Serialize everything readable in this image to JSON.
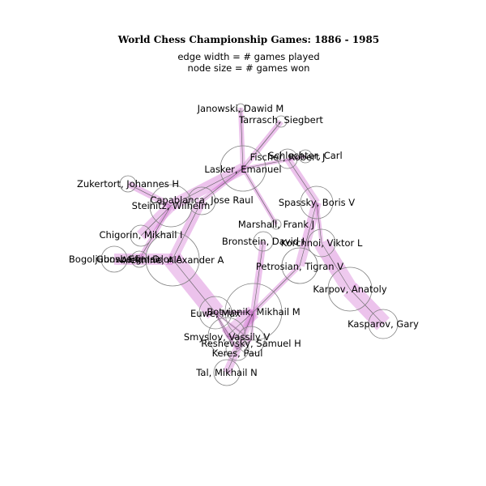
{
  "chart_data": {
    "type": "network",
    "title": "World Chess Championship Games: 1886 - 1985",
    "subtitle_line1": "edge width = # games played",
    "subtitle_line2": "node size = # games won",
    "edge_color": "#c850c8",
    "node_stroke_color": "#808080",
    "nodes": [
      {
        "id": "janowski",
        "label": "Janowski, Dawid M"
      },
      {
        "id": "tarrasch",
        "label": "Tarrasch, Siegbert"
      },
      {
        "id": "fischer",
        "label": "Fischer, Robert J"
      },
      {
        "id": "schlechter",
        "label": "Schlechter, Carl"
      },
      {
        "id": "lasker",
        "label": "Lasker, Emanuel"
      },
      {
        "id": "zukertort",
        "label": "Zukertort, Johannes H"
      },
      {
        "id": "capablanca",
        "label": "Capablanca, Jose Raul"
      },
      {
        "id": "steinitz",
        "label": "Steinitz, Wilhelm"
      },
      {
        "id": "spassky",
        "label": "Spassky, Boris V"
      },
      {
        "id": "marshall",
        "label": "Marshall, Frank J"
      },
      {
        "id": "chigorin",
        "label": "Chigorin, Mikhail I"
      },
      {
        "id": "bronstein",
        "label": "Bronstein, David I"
      },
      {
        "id": "korchnoi",
        "label": "Korchnoi, Viktor L"
      },
      {
        "id": "bogoljubow",
        "label": "Bogoljubow, Efim D"
      },
      {
        "id": "gunsberg",
        "label": "Gunsberg, Isidor A"
      },
      {
        "id": "alekhine",
        "label": "Alekhine, Alexander A"
      },
      {
        "id": "petrosian",
        "label": "Petrosian, Tigran V"
      },
      {
        "id": "karpov",
        "label": "Karpov, Anatoly"
      },
      {
        "id": "botvinnik",
        "label": "Botvinnik, Mikhail M"
      },
      {
        "id": "euwe",
        "label": "Euwe, Max"
      },
      {
        "id": "kasparov",
        "label": "Kasparov, Gary"
      },
      {
        "id": "smyslov",
        "label": "Smyslov, Vassily V"
      },
      {
        "id": "reshevsky",
        "label": "Reshevsky, Samuel H"
      },
      {
        "id": "keres",
        "label": "Keres, Paul"
      },
      {
        "id": "tal",
        "label": "Tal, Mikhail N"
      }
    ],
    "edges": [
      {
        "source": "janowski",
        "target": "lasker"
      },
      {
        "source": "tarrasch",
        "target": "lasker"
      },
      {
        "source": "schlechter",
        "target": "lasker"
      },
      {
        "source": "marshall",
        "target": "lasker"
      },
      {
        "source": "steinitz",
        "target": "lasker"
      },
      {
        "source": "capablanca",
        "target": "lasker"
      },
      {
        "source": "fischer",
        "target": "spassky"
      },
      {
        "source": "zukertort",
        "target": "steinitz"
      },
      {
        "source": "chigorin",
        "target": "steinitz"
      },
      {
        "source": "gunsberg",
        "target": "steinitz"
      },
      {
        "source": "capablanca",
        "target": "alekhine"
      },
      {
        "source": "bogoljubow",
        "target": "alekhine"
      },
      {
        "source": "alekhine",
        "target": "euwe"
      },
      {
        "source": "spassky",
        "target": "petrosian"
      },
      {
        "source": "spassky",
        "target": "korchnoi"
      },
      {
        "source": "karpov",
        "target": "korchnoi"
      },
      {
        "source": "karpov",
        "target": "kasparov"
      },
      {
        "source": "botvinnik",
        "target": "bronstein"
      },
      {
        "source": "botvinnik",
        "target": "petrosian"
      },
      {
        "source": "botvinnik",
        "target": "smyslov"
      },
      {
        "source": "botvinnik",
        "target": "tal"
      },
      {
        "source": "botvinnik",
        "target": "euwe"
      },
      {
        "source": "botvinnik",
        "target": "keres"
      },
      {
        "source": "botvinnik",
        "target": "reshevsky"
      },
      {
        "source": "smyslov",
        "target": "euwe"
      },
      {
        "source": "smyslov",
        "target": "keres"
      },
      {
        "source": "smyslov",
        "target": "reshevsky"
      },
      {
        "source": "keres",
        "target": "reshevsky"
      },
      {
        "source": "keres",
        "target": "euwe"
      },
      {
        "source": "reshevsky",
        "target": "euwe"
      }
    ]
  }
}
